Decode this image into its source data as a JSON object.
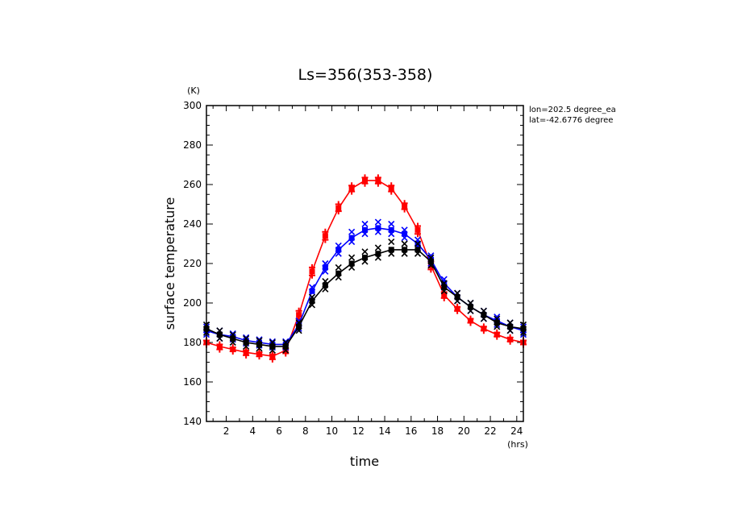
{
  "chart_data": {
    "type": "line",
    "title": "Ls=356(353-358)",
    "xlabel": "time",
    "ylabel": "surface temperature",
    "x_unit": "(hrs)",
    "y_unit": "(K)",
    "info_lines": [
      "lon=202.5 degree_ea",
      "lat=-42.6776 degree"
    ],
    "xlim": [
      0.5,
      24.5
    ],
    "ylim": [
      140,
      300
    ],
    "x_ticks": [
      2,
      4,
      6,
      8,
      10,
      12,
      14,
      16,
      18,
      20,
      22,
      24
    ],
    "y_ticks": [
      140,
      160,
      180,
      200,
      220,
      240,
      260,
      280,
      300
    ],
    "grid": false,
    "x": [
      0.5,
      1.5,
      2.5,
      3.5,
      4.5,
      5.5,
      6.5,
      7.5,
      8.5,
      9.5,
      10.5,
      11.5,
      12.5,
      13.5,
      14.5,
      15.5,
      16.5,
      17.5,
      18.5,
      19.5,
      20.5,
      21.5,
      22.5,
      23.5,
      24.5
    ],
    "series": [
      {
        "color": "#ff0000",
        "values": [
          180,
          178,
          176.5,
          175,
          174,
          173,
          176,
          194,
          216,
          234,
          248,
          258,
          262,
          262,
          258,
          249,
          237,
          219,
          204,
          197,
          191,
          187,
          184,
          181.5,
          180
        ],
        "scatter_offsets": [
          [
            1,
            -1
          ],
          [
            1,
            -1.5
          ],
          [
            1,
            -1
          ],
          [
            1,
            -1.5
          ],
          [
            1,
            -1
          ],
          [
            1,
            -1.5
          ],
          [
            1,
            -1.5
          ],
          [
            2,
            -2
          ],
          [
            2,
            -2
          ],
          [
            2,
            -2
          ],
          [
            2,
            -1.5
          ],
          [
            1.5,
            -1.5
          ],
          [
            1.5,
            -1.5
          ],
          [
            1.5,
            -1.5
          ],
          [
            1.5,
            -1.5
          ],
          [
            1.5,
            -1.5
          ],
          [
            2,
            -2
          ],
          [
            2,
            -2
          ],
          [
            1.5,
            -1.5
          ],
          [
            1,
            -1
          ],
          [
            1,
            -1
          ],
          [
            1,
            -1
          ],
          [
            1,
            -1
          ],
          [
            1,
            -1
          ],
          [
            1,
            -1
          ]
        ]
      },
      {
        "color": "#0000ff",
        "values": [
          186,
          184,
          183,
          181,
          180,
          179,
          179,
          189,
          206,
          218,
          227,
          233,
          237,
          238,
          237,
          235,
          230,
          222,
          210,
          203,
          198,
          194,
          191,
          188,
          186
        ],
        "scatter_offsets": [
          [
            2,
            -2
          ],
          [
            2,
            -2
          ],
          [
            1.5,
            -1.5
          ],
          [
            1.5,
            -1.5
          ],
          [
            1.5,
            -1.5
          ],
          [
            1.5,
            -1.5
          ],
          [
            1.5,
            -1.5
          ],
          [
            2,
            -2
          ],
          [
            2,
            -3
          ],
          [
            2,
            -2
          ],
          [
            2,
            -2
          ],
          [
            3,
            -2
          ],
          [
            3,
            -2
          ],
          [
            3,
            -2
          ],
          [
            3,
            -2
          ],
          [
            2,
            -2
          ],
          [
            2,
            -2
          ],
          [
            2,
            -2
          ],
          [
            2,
            -2
          ],
          [
            2,
            -2
          ],
          [
            2,
            -2
          ],
          [
            2,
            -2
          ],
          [
            2,
            -2
          ],
          [
            2,
            -2
          ],
          [
            2,
            -2
          ]
        ]
      },
      {
        "color": "#000000",
        "values": [
          187,
          184,
          182,
          180,
          179,
          178,
          178,
          188,
          201,
          209,
          215,
          220,
          223,
          225,
          227,
          227,
          227,
          221,
          208,
          203,
          198,
          194,
          190,
          188,
          187
        ],
        "scatter_offsets": [
          [
            2,
            -2
          ],
          [
            2,
            -2
          ],
          [
            2,
            -2
          ],
          [
            2,
            -2
          ],
          [
            2,
            -2
          ],
          [
            2,
            -2
          ],
          [
            2,
            -2
          ],
          [
            2,
            -2
          ],
          [
            2,
            -2
          ],
          [
            2,
            -2
          ],
          [
            3,
            -2
          ],
          [
            3,
            -2
          ],
          [
            3,
            -2
          ],
          [
            3,
            -2
          ],
          [
            4,
            -2
          ],
          [
            3,
            -2
          ],
          [
            3,
            -2
          ],
          [
            2,
            -2
          ],
          [
            2,
            -2
          ],
          [
            2,
            -2
          ],
          [
            2,
            -2
          ],
          [
            2,
            -2
          ],
          [
            2,
            -2
          ],
          [
            2,
            -2
          ],
          [
            2,
            -2
          ]
        ]
      }
    ]
  }
}
